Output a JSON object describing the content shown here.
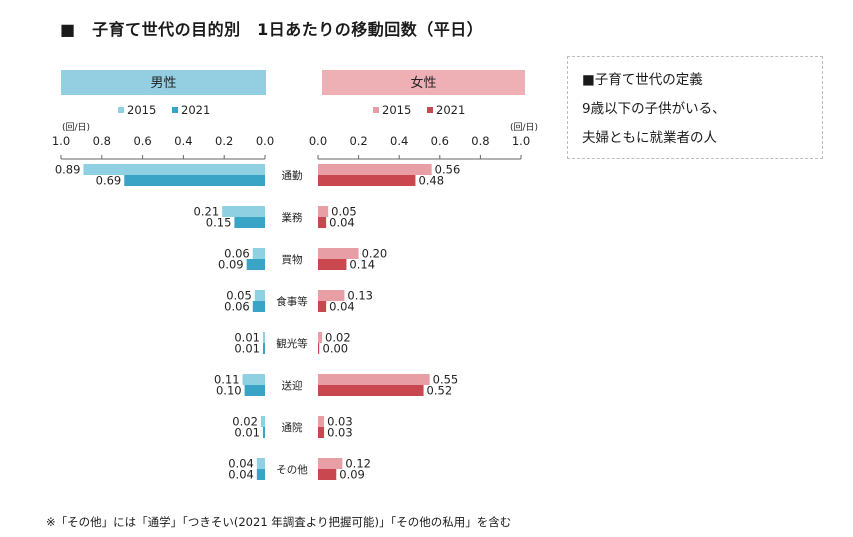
{
  "title": "■　子育て世代の目的別　1日あたりの移動回数（平日）",
  "definition": {
    "heading": "■子育て世代の定義",
    "line1": "9歳以下の子供がいる、",
    "line2": "夫婦ともに就業者の人"
  },
  "footnote": "※「その他」には「通学」「つきそい(2021 年調査より把握可能)」「その他の私用」を含む",
  "colors": {
    "male_2015": "#8fd0e3",
    "male_2021": "#3aa4c6",
    "female_2015": "#e89ea5",
    "female_2021": "#c9474f",
    "male_header": "#93cfe1",
    "female_header": "#eeb0b5"
  },
  "chart_data": {
    "type": "bar",
    "orientation": "horizontal",
    "categories": [
      "通勤",
      "業務",
      "買物",
      "食事等",
      "観光等",
      "送迎",
      "通院",
      "その他"
    ],
    "unit_label": "(回/日)",
    "xlim": [
      0,
      1.0
    ],
    "ticks": [
      "0.0",
      "0.2",
      "0.4",
      "0.6",
      "0.8",
      "1.0"
    ],
    "panels": [
      {
        "name": "男性",
        "side": "left",
        "series": [
          {
            "name": "2015",
            "values": [
              0.89,
              0.21,
              0.06,
              0.05,
              0.01,
              0.11,
              0.02,
              0.04
            ],
            "labels": [
              "0.89",
              "0.21",
              "0.06",
              "0.05",
              "0.01",
              "0.11",
              "0.02",
              "0.04"
            ]
          },
          {
            "name": "2021",
            "values": [
              0.69,
              0.15,
              0.09,
              0.06,
              0.01,
              0.1,
              0.01,
              0.04
            ],
            "labels": [
              "0.69",
              "0.15",
              "0.09",
              "0.06",
              "0.01",
              "0.10",
              "0.01",
              "0.04"
            ]
          }
        ]
      },
      {
        "name": "女性",
        "side": "right",
        "series": [
          {
            "name": "2015",
            "values": [
              0.56,
              0.05,
              0.2,
              0.13,
              0.02,
              0.55,
              0.03,
              0.12
            ],
            "labels": [
              "0.56",
              "0.05",
              "0.20",
              "0.13",
              "0.02",
              "0.55",
              "0.03",
              "0.12"
            ]
          },
          {
            "name": "2021",
            "values": [
              0.48,
              0.04,
              0.14,
              0.04,
              0.0,
              0.52,
              0.03,
              0.09
            ],
            "labels": [
              "0.48",
              "0.04",
              "0.14",
              "0.04",
              "0.00",
              "0.52",
              "0.03",
              "0.09"
            ]
          }
        ]
      }
    ]
  }
}
